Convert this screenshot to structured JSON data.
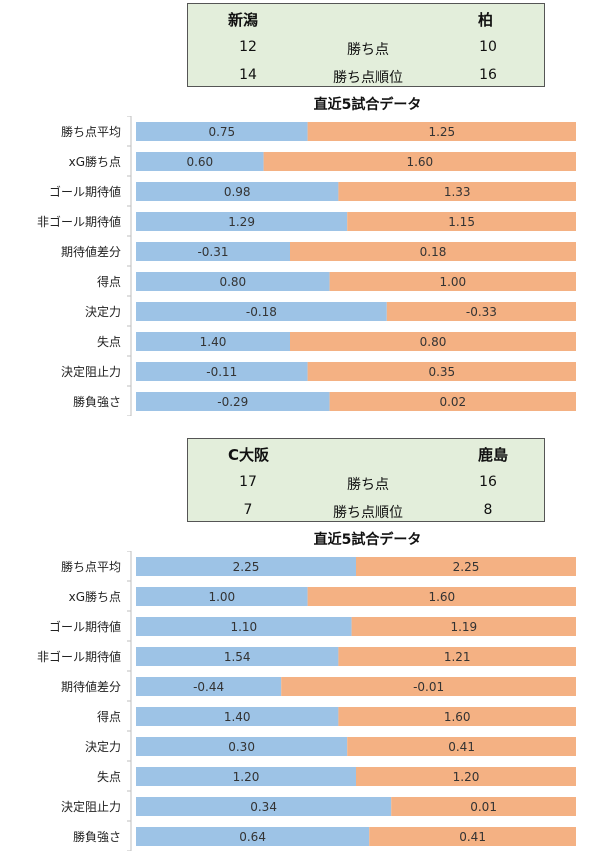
{
  "colors": {
    "home": "#9dc3e6",
    "away": "#f4b183",
    "summary_bg": "#e3eedb"
  },
  "panels": [
    {
      "home_team": "新潟",
      "away_team": "柏",
      "summary_rows": [
        {
          "label": "勝ち点",
          "home": "12",
          "away": "10"
        },
        {
          "label": "勝ち点順位",
          "home": "14",
          "away": "16"
        }
      ],
      "chart_title": "直近5試合データ"
    },
    {
      "home_team": "C大阪",
      "away_team": "鹿島",
      "summary_rows": [
        {
          "label": "勝ち点",
          "home": "17",
          "away": "16"
        },
        {
          "label": "勝ち点順位",
          "home": "7",
          "away": "8"
        }
      ],
      "chart_title": "直近5試合データ"
    }
  ],
  "chart_data": [
    {
      "type": "bar",
      "stacked": "100%",
      "orientation": "horizontal",
      "title": "直近5試合データ",
      "categories": [
        "勝ち点平均",
        "xG勝ち点",
        "ゴール期待値",
        "非ゴール期待値",
        "期待値差分",
        "得点",
        "決定力",
        "失点",
        "決定阻止力",
        "勝負強さ"
      ],
      "series": [
        {
          "name": "新潟",
          "values": [
            "0.75",
            "0.60",
            "0.98",
            "1.29",
            "-0.31",
            "0.80",
            "-0.18",
            "1.40",
            "-0.11",
            "-0.29"
          ]
        },
        {
          "name": "柏",
          "values": [
            "1.25",
            "1.60",
            "1.33",
            "1.15",
            "0.18",
            "1.00",
            "-0.33",
            "0.80",
            "0.35",
            "0.02"
          ]
        }
      ],
      "split_fraction": [
        0.39,
        0.29,
        0.46,
        0.48,
        0.35,
        0.44,
        0.57,
        0.35,
        0.39,
        0.44
      ]
    },
    {
      "type": "bar",
      "stacked": "100%",
      "orientation": "horizontal",
      "title": "直近5試合データ",
      "categories": [
        "勝ち点平均",
        "xG勝ち点",
        "ゴール期待値",
        "非ゴール期待値",
        "期待値差分",
        "得点",
        "決定力",
        "失点",
        "決定阻止力",
        "勝負強さ"
      ],
      "series": [
        {
          "name": "C大阪",
          "values": [
            "2.25",
            "1.00",
            "1.10",
            "1.54",
            "-0.44",
            "1.40",
            "0.30",
            "1.20",
            "0.34",
            "0.64"
          ]
        },
        {
          "name": "鹿島",
          "values": [
            "2.25",
            "1.60",
            "1.19",
            "1.21",
            "-0.01",
            "1.60",
            "0.41",
            "1.20",
            "0.01",
            "0.41"
          ]
        }
      ],
      "split_fraction": [
        0.5,
        0.39,
        0.49,
        0.46,
        0.33,
        0.46,
        0.48,
        0.5,
        0.58,
        0.53
      ]
    }
  ]
}
